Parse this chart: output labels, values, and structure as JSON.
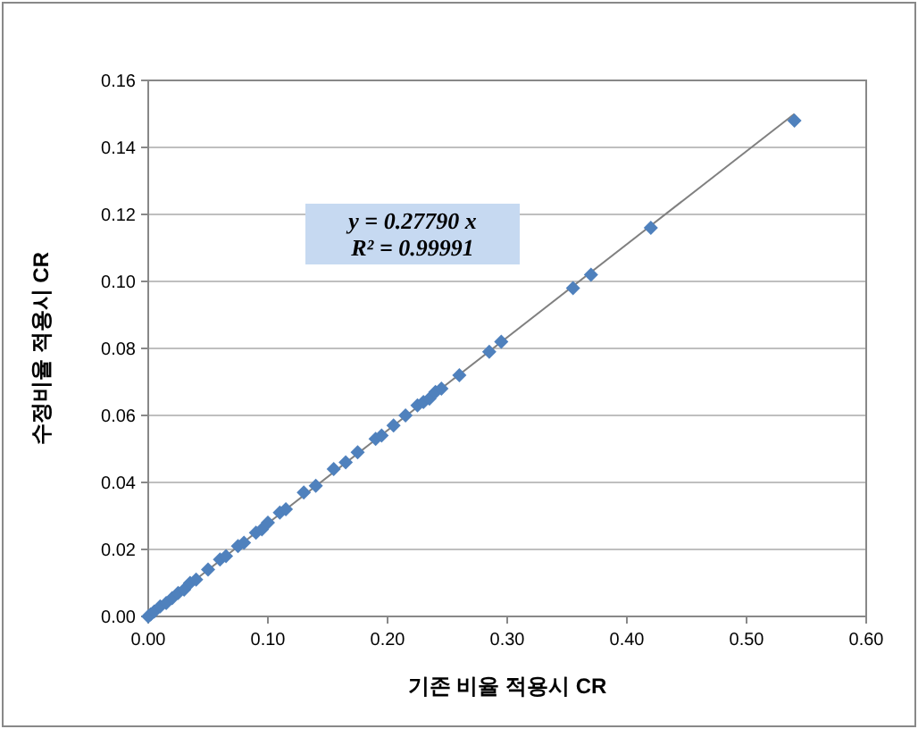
{
  "chart_data": {
    "type": "scatter",
    "xlabel": "기존 비율 적용시 CR",
    "ylabel": "수정비율 적용시 CR",
    "annotations": [
      "y = 0.27790 x",
      "R² = 0.99991"
    ],
    "xlim": [
      0,
      0.6
    ],
    "xticks": [
      {
        "value": 0,
        "label": "0.00"
      },
      {
        "value": 0.1,
        "label": "0.10"
      },
      {
        "value": 0.2,
        "label": "0.20"
      },
      {
        "value": 0.3,
        "label": "0.30"
      },
      {
        "value": 0.4,
        "label": "0.40"
      },
      {
        "value": 0.5,
        "label": "0.50"
      },
      {
        "value": 0.6,
        "label": "0.60"
      }
    ],
    "ylim": [
      0,
      0.16
    ],
    "yticks": [
      {
        "value": 0,
        "label": "0.00"
      },
      {
        "value": 0.02,
        "label": "0.02"
      },
      {
        "value": 0.04,
        "label": "0.04"
      },
      {
        "value": 0.06,
        "label": "0.06"
      },
      {
        "value": 0.08,
        "label": "0.08"
      },
      {
        "value": 0.1,
        "label": "0.10"
      },
      {
        "value": 0.12,
        "label": "0.12"
      },
      {
        "value": 0.14,
        "label": "0.14"
      },
      {
        "value": 0.16,
        "label": "0.16"
      }
    ],
    "grid": "y",
    "marker": "diamond",
    "series": [
      {
        "type": "line",
        "color": "#808080",
        "marker": "none",
        "x": [
          0,
          0.54
        ],
        "values": [
          0,
          0.15
        ]
      },
      {
        "color": "#4f81bd",
        "x": [
          0,
          0.002,
          0.005,
          0.01,
          0.015,
          0.02,
          0.025,
          0.03,
          0.035,
          0.04,
          0.05,
          0.06,
          0.065,
          0.075,
          0.08,
          0.09,
          0.095,
          0.1,
          0.11,
          0.115,
          0.13,
          0.14,
          0.155,
          0.165,
          0.175,
          0.19,
          0.195,
          0.205,
          0.215,
          0.225,
          0.23,
          0.235,
          0.24,
          0.245,
          0.26,
          0.285,
          0.295,
          0.355,
          0.37,
          0.42,
          0.54
        ],
        "values": [
          0,
          0.0006,
          0.0015,
          0.003,
          0.004,
          0.0055,
          0.007,
          0.008,
          0.01,
          0.011,
          0.014,
          0.017,
          0.018,
          0.021,
          0.022,
          0.025,
          0.026,
          0.028,
          0.031,
          0.032,
          0.037,
          0.039,
          0.044,
          0.046,
          0.049,
          0.053,
          0.054,
          0.057,
          0.06,
          0.063,
          0.064,
          0.065,
          0.067,
          0.068,
          0.072,
          0.079,
          0.082,
          0.098,
          0.102,
          0.116,
          0.148
        ]
      }
    ]
  }
}
